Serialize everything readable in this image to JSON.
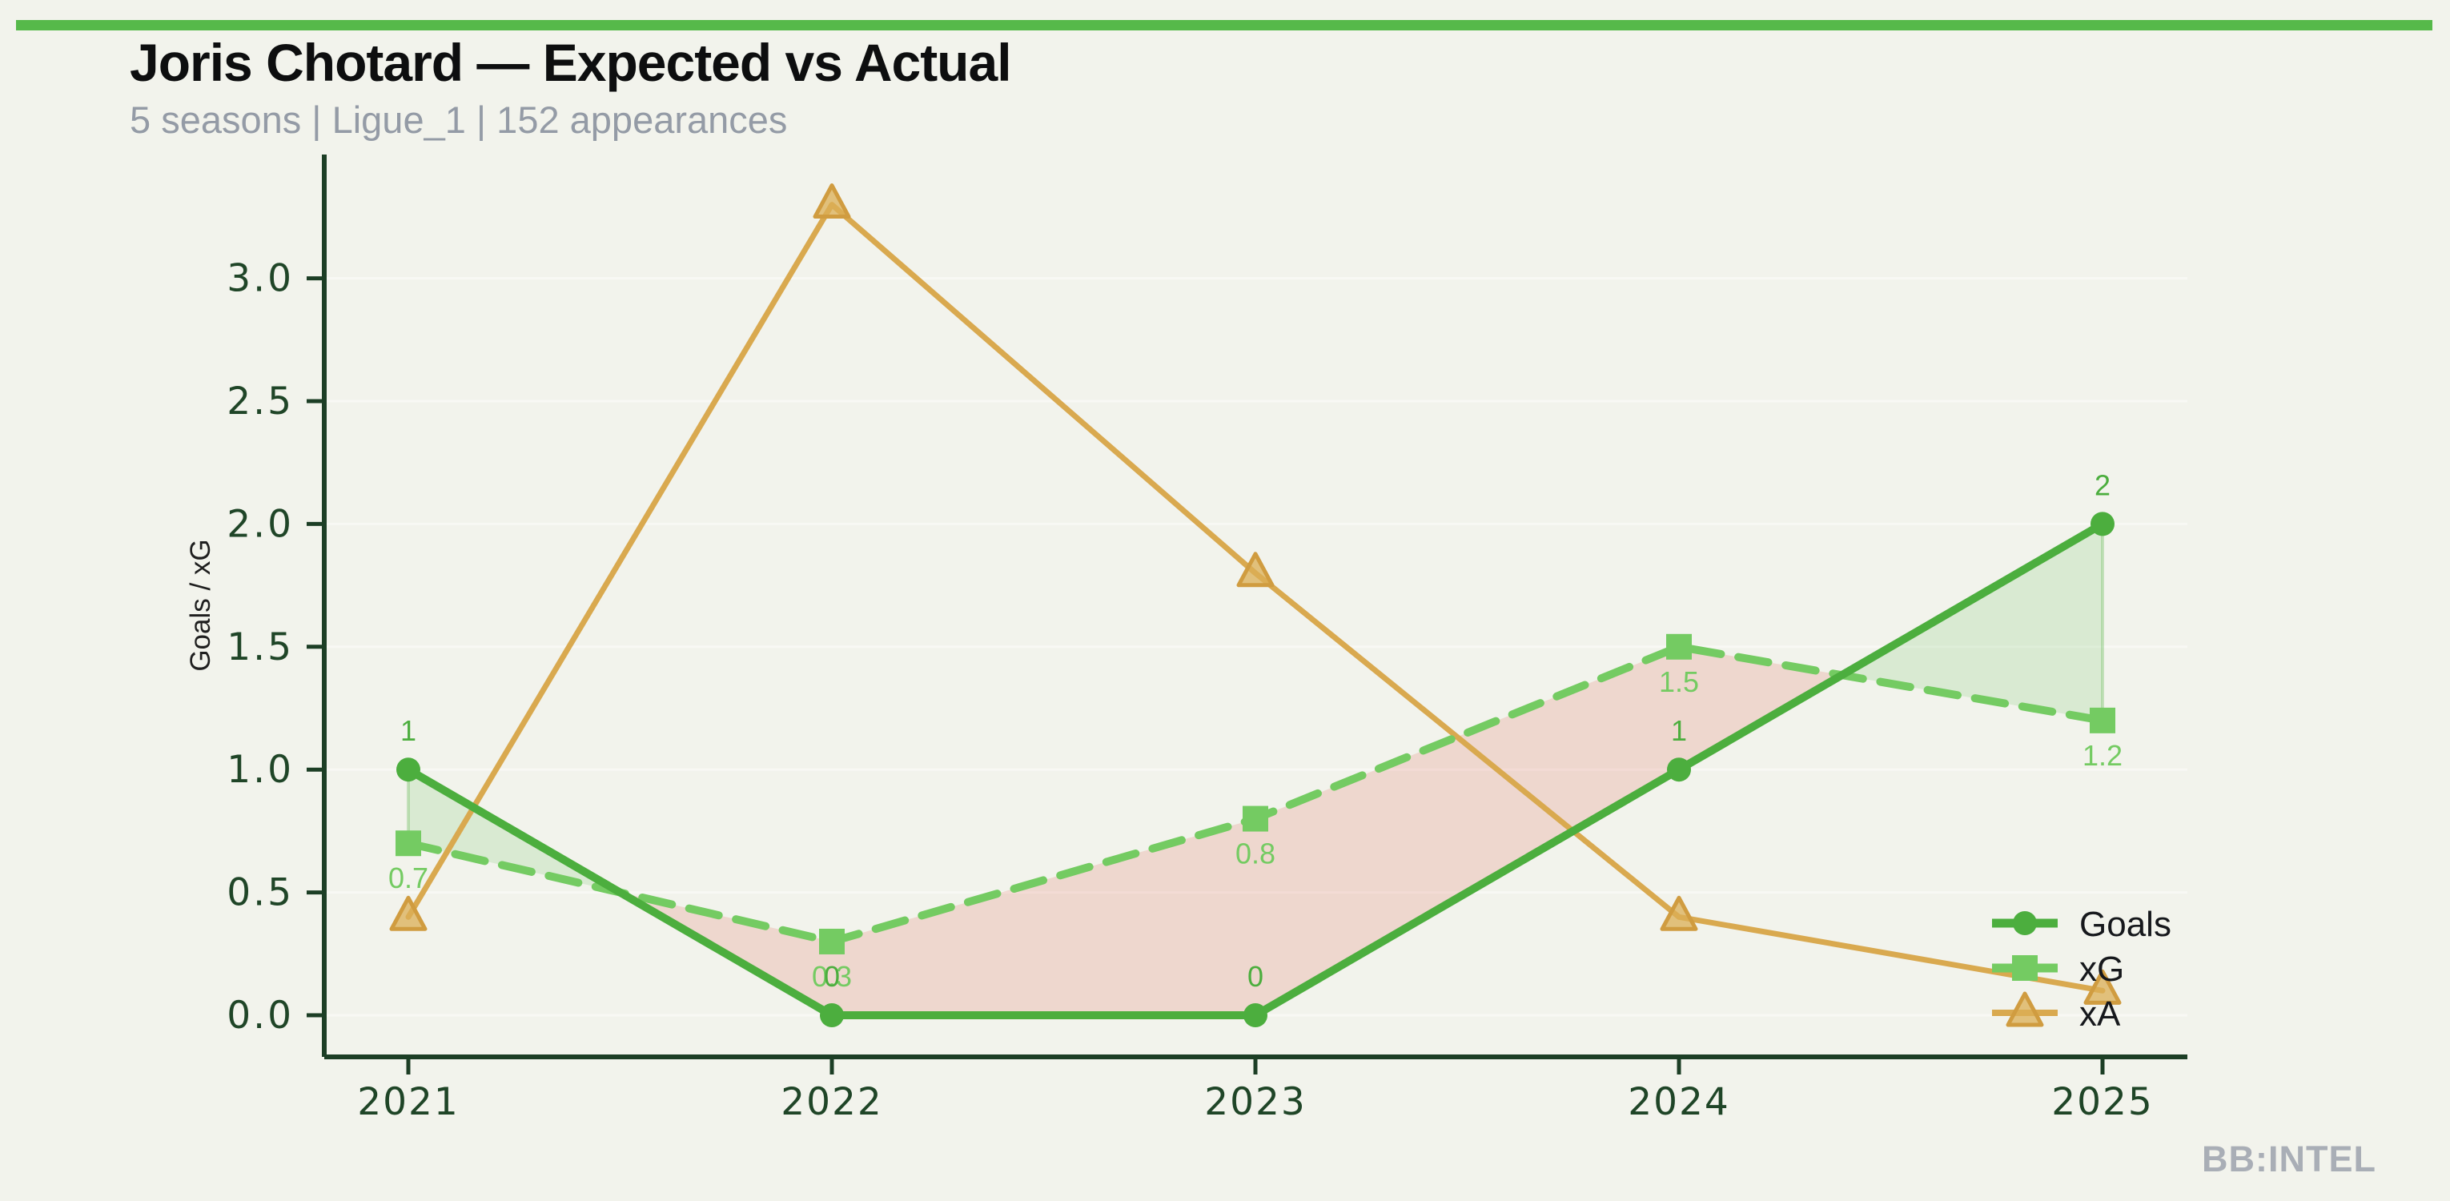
{
  "header": {
    "title": "Joris Chotard — Expected vs Actual",
    "subtitle": "5 seasons | Ligue_1 | 152 appearances"
  },
  "watermark": "BB:INTEL",
  "colors": {
    "accent_bar": "#56b94a",
    "background": "#f2f3ec",
    "axis": "#1c3e25",
    "tick_label": "#1f4527",
    "title": "#0d0e0f",
    "subtitle": "#949ba6",
    "watermark": "#a9aeb6",
    "goals_green": "#4cae3e",
    "xg_green": "#74cb62",
    "xa_tan": "#d9a94f",
    "fill_surplus": "rgba(90,187,76,0.16)",
    "fill_deficit": "rgba(224,106,90,0.20)"
  },
  "chart_data": {
    "type": "line",
    "categories": [
      "2021",
      "2022",
      "2023",
      "2024",
      "2025"
    ],
    "series": [
      {
        "name": "Goals",
        "values": [
          1,
          0,
          0,
          1,
          2
        ],
        "labels": [
          "1",
          "0",
          "0",
          "1",
          "2"
        ],
        "color": "#4cae3e",
        "marker": "circle",
        "dash": null,
        "label_position": "above"
      },
      {
        "name": "xG",
        "values": [
          0.7,
          0.3,
          0.8,
          1.5,
          1.2
        ],
        "labels": [
          "0.7",
          "0.3",
          "0.8",
          "1.5",
          "1.2"
        ],
        "color": "#74cb62",
        "marker": "square",
        "dash": "38 22",
        "label_position": "below"
      },
      {
        "name": "xA",
        "values": [
          0.4,
          3.3,
          1.8,
          0.4,
          0.1
        ],
        "labels": null,
        "color": "#d9a94f",
        "marker": "triangle",
        "dash": null,
        "label_position": "none"
      }
    ],
    "title": "Joris Chotard — Expected vs Actual",
    "xlabel": "",
    "ylabel": "Goals / xG",
    "yticks": [
      0.0,
      0.5,
      1.0,
      1.5,
      2.0,
      2.5,
      3.0
    ],
    "ylim": [
      -0.17,
      3.5
    ],
    "grid": true,
    "fill_between": {
      "upper": "Goals",
      "lower": "xG",
      "surplus_color": "rgba(90,187,76,0.16)",
      "deficit_color": "rgba(224,106,90,0.20)"
    },
    "legend": {
      "position": "lower right",
      "entries": [
        "Goals",
        "xG",
        "xA"
      ]
    }
  }
}
